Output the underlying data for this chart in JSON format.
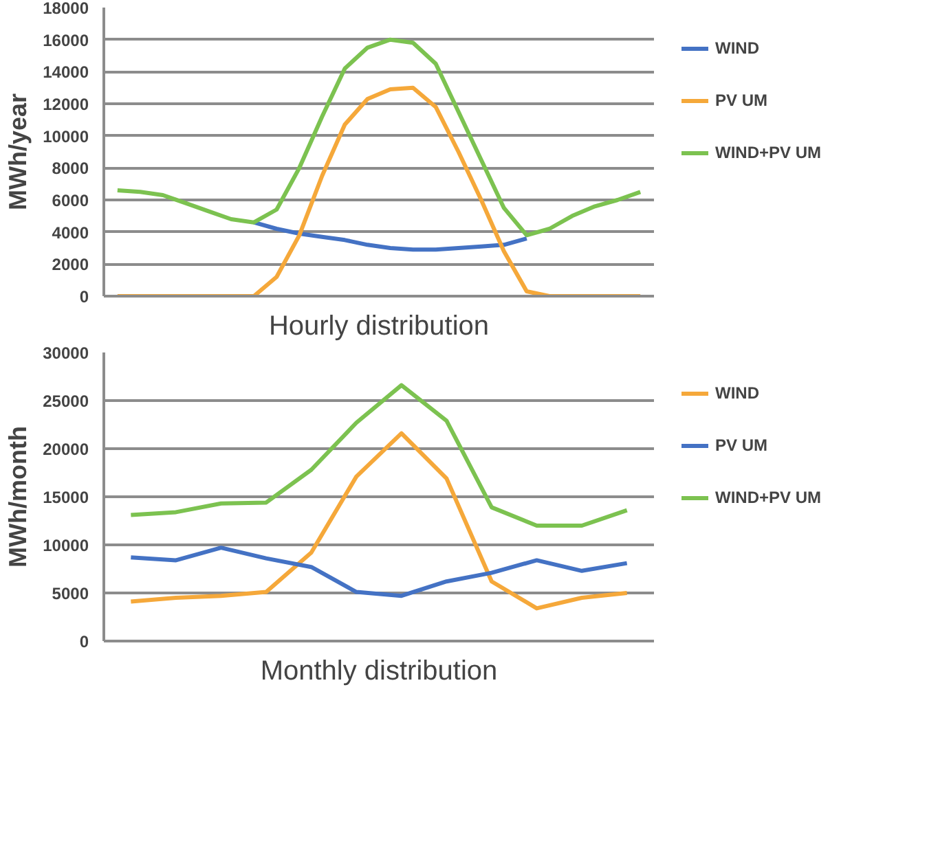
{
  "chart_data": [
    {
      "type": "line",
      "xlabel": "Hourly distribution",
      "ylabel": "MWh/year",
      "categories": [
        null,
        null,
        null,
        null,
        null,
        null,
        null,
        null,
        null,
        null,
        null,
        null,
        null,
        null,
        null,
        null,
        null,
        null,
        null,
        null,
        null,
        null,
        null,
        null
      ],
      "ylim": [
        0,
        18000
      ],
      "yticks": [
        0,
        2000,
        4000,
        6000,
        8000,
        10000,
        12000,
        14000,
        16000,
        18000
      ],
      "grid": "y",
      "legend": "right",
      "tick_labels": "y",
      "marker": "none",
      "line_style": "solid",
      "series": [
        {
          "name": "WIND",
          "color": "#4472c4",
          "values": [
            null,
            null,
            null,
            null,
            null,
            null,
            4600,
            4200,
            3900,
            3700,
            3500,
            3200,
            3000,
            2900,
            2900,
            3000,
            3100,
            3200,
            3600,
            null,
            null,
            null,
            null,
            null
          ]
        },
        {
          "name": "PV UM",
          "color": "#f5a83a",
          "values": [
            0,
            0,
            0,
            0,
            0,
            0,
            0,
            1200,
            3800,
            7500,
            10700,
            12300,
            12900,
            13000,
            11800,
            9000,
            6000,
            2800,
            300,
            0,
            0,
            0,
            0,
            0
          ]
        },
        {
          "name": "WIND+PV UM",
          "color": "#7cc250",
          "values": [
            6600,
            6500,
            6300,
            5800,
            5300,
            4800,
            4600,
            5400,
            8000,
            11200,
            14200,
            15500,
            16000,
            15800,
            14500,
            11500,
            8500,
            5500,
            3800,
            4200,
            5000,
            5600,
            6000,
            6500
          ]
        }
      ]
    },
    {
      "type": "line",
      "xlabel": "Monthly distribution",
      "ylabel": "MWh/month",
      "categories": [
        null,
        null,
        null,
        null,
        null,
        null,
        null,
        null,
        null,
        null,
        null,
        null
      ],
      "ylim": [
        0,
        30000
      ],
      "yticks": [
        0,
        5000,
        10000,
        15000,
        20000,
        25000,
        30000
      ],
      "grid": "y",
      "legend": "right",
      "tick_labels": "y",
      "marker": "none",
      "line_style": "solid",
      "series": [
        {
          "name": "WIND",
          "color": "#f5a83a",
          "values": [
            4100,
            4500,
            4700,
            5100,
            9200,
            17100,
            21600,
            16900,
            6200,
            3400,
            4500,
            5000
          ]
        },
        {
          "name": "PV UM",
          "color": "#4472c4",
          "values": [
            8700,
            8400,
            9700,
            8600,
            7700,
            5100,
            4700,
            6200,
            7100,
            8400,
            7300,
            8100
          ]
        },
        {
          "name": "WIND+PV UM",
          "color": "#7cc250",
          "values": [
            13100,
            13400,
            14300,
            14400,
            17800,
            22700,
            26600,
            22900,
            13900,
            12000,
            12000,
            13600
          ]
        }
      ]
    }
  ]
}
